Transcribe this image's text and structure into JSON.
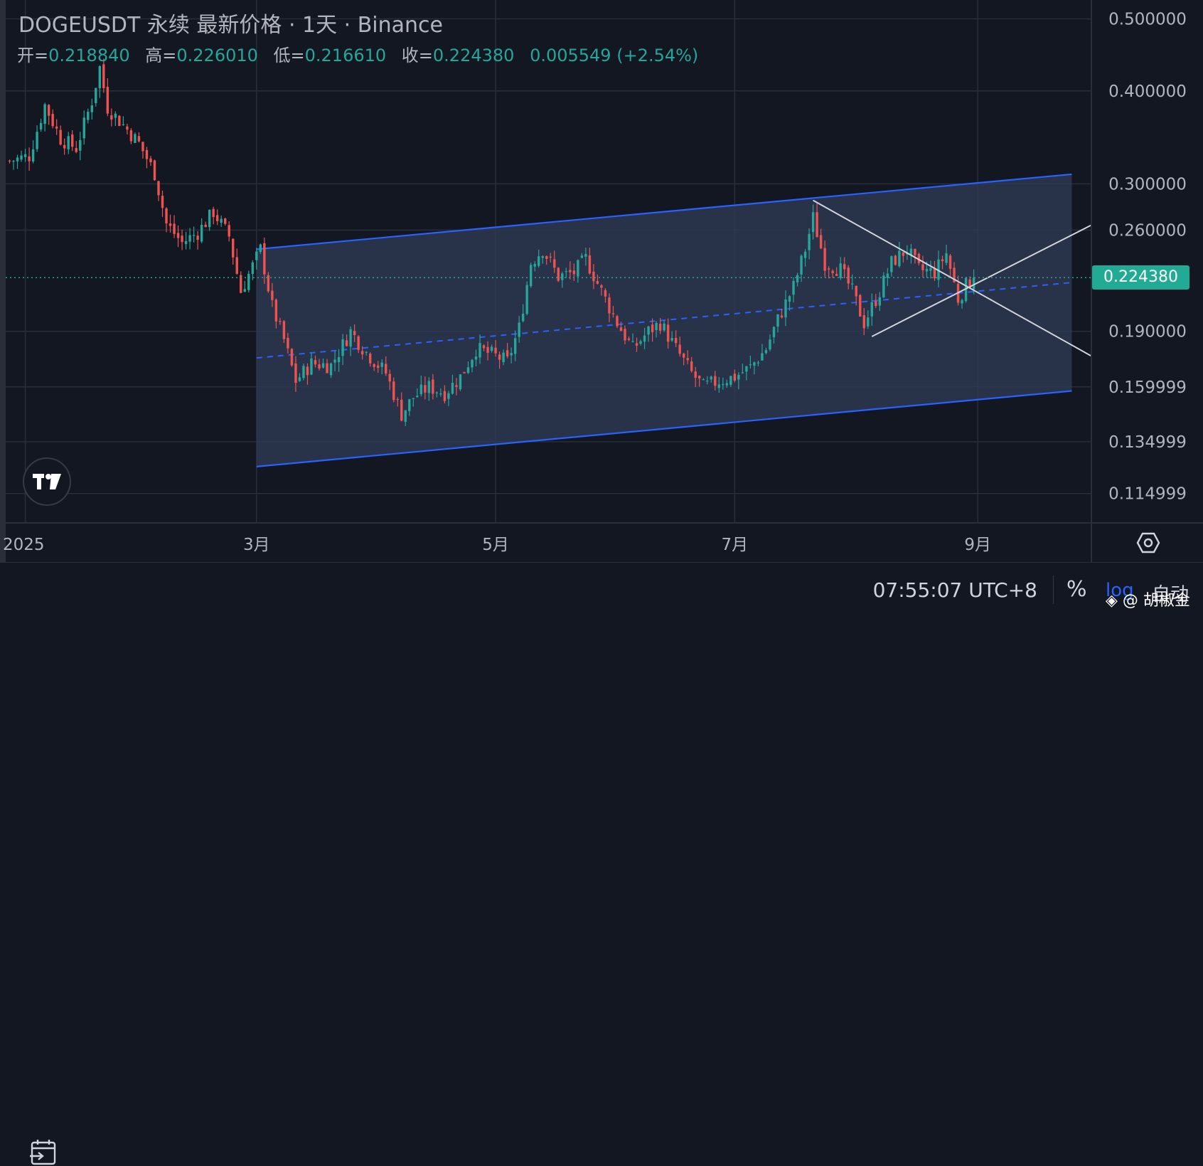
{
  "header": {
    "title": "DOGEUSDT 永续 最新价格 · 1天 · Binance",
    "open_label": "开=",
    "open": "0.218840",
    "high_label": "高=",
    "high": "0.226010",
    "low_label": "低=",
    "low": "0.216610",
    "close_label": "收=",
    "close": "0.224380",
    "change": "0.005549 (+2.54%)"
  },
  "price_tag": "0.224380",
  "footer": {
    "time": "07:55:07 UTC+8",
    "percent_label": "%",
    "log_label": "log",
    "auto_label": "自动",
    "watermark": "@ 胡椒金"
  },
  "icons": {
    "logo": "tradingview-logo-icon",
    "calendar": "calendar-goto-icon",
    "settings": "chart-settings-icon",
    "watermark": "binance-square-icon"
  },
  "colors": {
    "up": "#26a69a",
    "down": "#ef5350",
    "channel": "#2962ff",
    "channel_fill": "#2e3a52",
    "triangle": "#d1d4dc",
    "background": "#131722",
    "price_tag": "#22ab94"
  },
  "chart_data": {
    "type": "candlestick",
    "symbol": "DOGEUSDT",
    "interval": "1天",
    "y_scale": "log",
    "y_range": [
      0.105,
      0.53
    ],
    "grid": true,
    "y_ticks": [
      {
        "value": 0.5,
        "label": "0.500000"
      },
      {
        "value": 0.4,
        "label": "0.400000"
      },
      {
        "value": 0.3,
        "label": "0.300000"
      },
      {
        "value": 0.26,
        "label": "0.260000"
      },
      {
        "value": 0.19,
        "label": "0.190000"
      },
      {
        "value": 0.159999,
        "label": "0.159999"
      },
      {
        "value": 0.134999,
        "label": "0.134999"
      },
      {
        "value": 0.114999,
        "label": "0.114999"
      }
    ],
    "x_ticks": [
      {
        "date": "2025-01-01",
        "label": "2025"
      },
      {
        "date": "2025-03-01",
        "label": "3月"
      },
      {
        "date": "2025-05-01",
        "label": "5月"
      },
      {
        "date": "2025-07-01",
        "label": "7月"
      },
      {
        "date": "2025-09-01",
        "label": "9月"
      }
    ],
    "x_range": [
      "2024-12-27",
      "2025-09-30"
    ],
    "last_price": 0.22438,
    "closes": [
      {
        "date": "2024-12-28",
        "close": 0.322
      },
      {
        "date": "2025-01-02",
        "close": 0.327
      },
      {
        "date": "2025-01-06",
        "close": 0.383
      },
      {
        "date": "2025-01-10",
        "close": 0.345
      },
      {
        "date": "2025-01-14",
        "close": 0.335
      },
      {
        "date": "2025-01-18",
        "close": 0.388
      },
      {
        "date": "2025-01-20",
        "close": 0.43
      },
      {
        "date": "2025-01-22",
        "close": 0.38
      },
      {
        "date": "2025-01-26",
        "close": 0.36
      },
      {
        "date": "2025-01-30",
        "close": 0.34
      },
      {
        "date": "2025-02-03",
        "close": 0.31
      },
      {
        "date": "2025-02-06",
        "close": 0.265
      },
      {
        "date": "2025-02-10",
        "close": 0.25
      },
      {
        "date": "2025-02-14",
        "close": 0.258
      },
      {
        "date": "2025-02-18",
        "close": 0.275
      },
      {
        "date": "2025-02-22",
        "close": 0.255
      },
      {
        "date": "2025-02-25",
        "close": 0.215
      },
      {
        "date": "2025-03-02",
        "close": 0.245
      },
      {
        "date": "2025-03-05",
        "close": 0.205
      },
      {
        "date": "2025-03-08",
        "close": 0.185
      },
      {
        "date": "2025-03-11",
        "close": 0.163
      },
      {
        "date": "2025-03-15",
        "close": 0.172
      },
      {
        "date": "2025-03-20",
        "close": 0.171
      },
      {
        "date": "2025-03-25",
        "close": 0.19
      },
      {
        "date": "2025-03-29",
        "close": 0.178
      },
      {
        "date": "2025-04-03",
        "close": 0.167
      },
      {
        "date": "2025-04-07",
        "close": 0.147
      },
      {
        "date": "2025-04-10",
        "close": 0.155
      },
      {
        "date": "2025-04-14",
        "close": 0.16
      },
      {
        "date": "2025-04-18",
        "close": 0.157
      },
      {
        "date": "2025-04-22",
        "close": 0.165
      },
      {
        "date": "2025-04-26",
        "close": 0.18
      },
      {
        "date": "2025-04-30",
        "close": 0.177
      },
      {
        "date": "2025-05-04",
        "close": 0.173
      },
      {
        "date": "2025-05-07",
        "close": 0.192
      },
      {
        "date": "2025-05-10",
        "close": 0.235
      },
      {
        "date": "2025-05-13",
        "close": 0.245
      },
      {
        "date": "2025-05-17",
        "close": 0.225
      },
      {
        "date": "2025-05-21",
        "close": 0.228
      },
      {
        "date": "2025-05-24",
        "close": 0.238
      },
      {
        "date": "2025-05-28",
        "close": 0.215
      },
      {
        "date": "2025-06-01",
        "close": 0.195
      },
      {
        "date": "2025-06-05",
        "close": 0.18
      },
      {
        "date": "2025-06-09",
        "close": 0.19
      },
      {
        "date": "2025-06-12",
        "close": 0.195
      },
      {
        "date": "2025-06-16",
        "close": 0.18
      },
      {
        "date": "2025-06-20",
        "close": 0.167
      },
      {
        "date": "2025-06-23",
        "close": 0.16
      },
      {
        "date": "2025-06-27",
        "close": 0.163
      },
      {
        "date": "2025-07-01",
        "close": 0.165
      },
      {
        "date": "2025-07-05",
        "close": 0.17
      },
      {
        "date": "2025-07-09",
        "close": 0.18
      },
      {
        "date": "2025-07-12",
        "close": 0.197
      },
      {
        "date": "2025-07-16",
        "close": 0.218
      },
      {
        "date": "2025-07-19",
        "close": 0.245
      },
      {
        "date": "2025-07-21",
        "close": 0.27
      },
      {
        "date": "2025-07-24",
        "close": 0.235
      },
      {
        "date": "2025-07-28",
        "close": 0.23
      },
      {
        "date": "2025-07-31",
        "close": 0.215
      },
      {
        "date": "2025-08-03",
        "close": 0.195
      },
      {
        "date": "2025-08-07",
        "close": 0.215
      },
      {
        "date": "2025-08-10",
        "close": 0.235
      },
      {
        "date": "2025-08-14",
        "close": 0.245
      },
      {
        "date": "2025-08-17",
        "close": 0.23
      },
      {
        "date": "2025-08-21",
        "close": 0.228
      },
      {
        "date": "2025-08-24",
        "close": 0.242
      },
      {
        "date": "2025-08-27",
        "close": 0.21
      },
      {
        "date": "2025-08-29",
        "close": 0.219
      },
      {
        "date": "2025-08-31",
        "close": 0.2244
      }
    ],
    "drawings": [
      {
        "name": "ascending-channel-upper",
        "from": {
          "date": "2025-03-01",
          "price": 0.245
        },
        "to": {
          "date": "2025-09-25",
          "price": 0.309
        }
      },
      {
        "name": "ascending-channel-lower",
        "from": {
          "date": "2025-03-01",
          "price": 0.125
        },
        "to": {
          "date": "2025-09-25",
          "price": 0.158
        }
      },
      {
        "name": "ascending-channel-midline",
        "from": {
          "date": "2025-03-01",
          "price": 0.175
        },
        "to": {
          "date": "2025-09-25",
          "price": 0.221
        }
      },
      {
        "name": "triangle-upper",
        "from": {
          "date": "2025-07-21",
          "price": 0.285
        },
        "to": {
          "date": "2025-09-30",
          "price": 0.176
        }
      },
      {
        "name": "triangle-lower",
        "from": {
          "date": "2025-08-05",
          "price": 0.187
        },
        "to": {
          "date": "2025-09-30",
          "price": 0.264
        }
      }
    ]
  }
}
